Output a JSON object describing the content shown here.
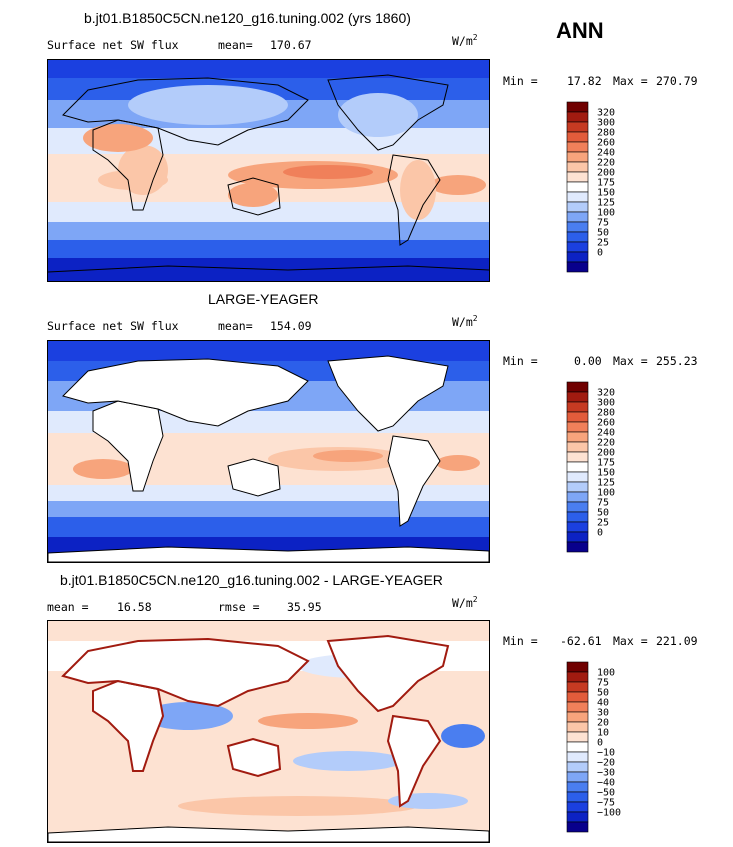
{
  "season": "ANN",
  "palettes": {
    "abs": [
      "#08008c",
      "#0c22c4",
      "#1b40e0",
      "#2c5fea",
      "#4a7ef0",
      "#7ea6f6",
      "#b3ccfa",
      "#e0eafd",
      "#ffffff",
      "#fde2d2",
      "#fbc6a8",
      "#f7a47c",
      "#f0805a",
      "#e25c3b",
      "#c63a22",
      "#a11b10",
      "#700000"
    ],
    "diff": [
      "#08008c",
      "#0c22c4",
      "#1b40e0",
      "#2c5fea",
      "#4a7ef0",
      "#7ea6f6",
      "#b3ccfa",
      "#e0eafd",
      "#ffffff",
      "#fde2d2",
      "#fbc6a8",
      "#f7a47c",
      "#f0805a",
      "#e25c3b",
      "#c63a22",
      "#a11b10",
      "#700000"
    ]
  },
  "chart_data": [
    {
      "type": "heatmap",
      "title": "b.jt01.B1850C5CN.ne120_g16.tuning.002 (yrs 1860)",
      "variable_label": "Surface net SW flux",
      "mean_label": "mean=",
      "mean": "170.67",
      "units_base": "W/m",
      "units_exp": "2",
      "min_label": "Min =",
      "min": "17.82",
      "max_label": "Max =",
      "max": "270.79",
      "colorbar_levels": [
        "320",
        "300",
        "280",
        "260",
        "240",
        "220",
        "200",
        "175",
        "150",
        "125",
        "100",
        "75",
        "50",
        "25",
        "0"
      ],
      "land_masked": false
    },
    {
      "type": "heatmap",
      "title": "LARGE-YEAGER",
      "variable_label": "Surface net SW flux",
      "mean_label": "mean=",
      "mean": "154.09",
      "units_base": "W/m",
      "units_exp": "2",
      "min_label": "Min =",
      "min": "0.00",
      "max_label": "Max =",
      "max": "255.23",
      "colorbar_levels": [
        "320",
        "300",
        "280",
        "260",
        "240",
        "220",
        "200",
        "175",
        "150",
        "125",
        "100",
        "75",
        "50",
        "25",
        "0"
      ],
      "land_masked": true
    },
    {
      "type": "heatmap",
      "title": "b.jt01.B1850C5CN.ne120_g16.tuning.002 - LARGE-YEAGER",
      "mean_label": "mean =",
      "mean": "16.58",
      "rmse_label": "rmse =",
      "rmse": "35.95",
      "units_base": "W/m",
      "units_exp": "2",
      "min_label": "Min =",
      "min": "-62.61",
      "max_label": "Max =",
      "max": "221.09",
      "colorbar_levels": [
        "100",
        "75",
        "50",
        "40",
        "30",
        "20",
        "10",
        "0",
        "−10",
        "−20",
        "−30",
        "−40",
        "−50",
        "−75",
        "−100"
      ],
      "land_masked": true
    }
  ]
}
